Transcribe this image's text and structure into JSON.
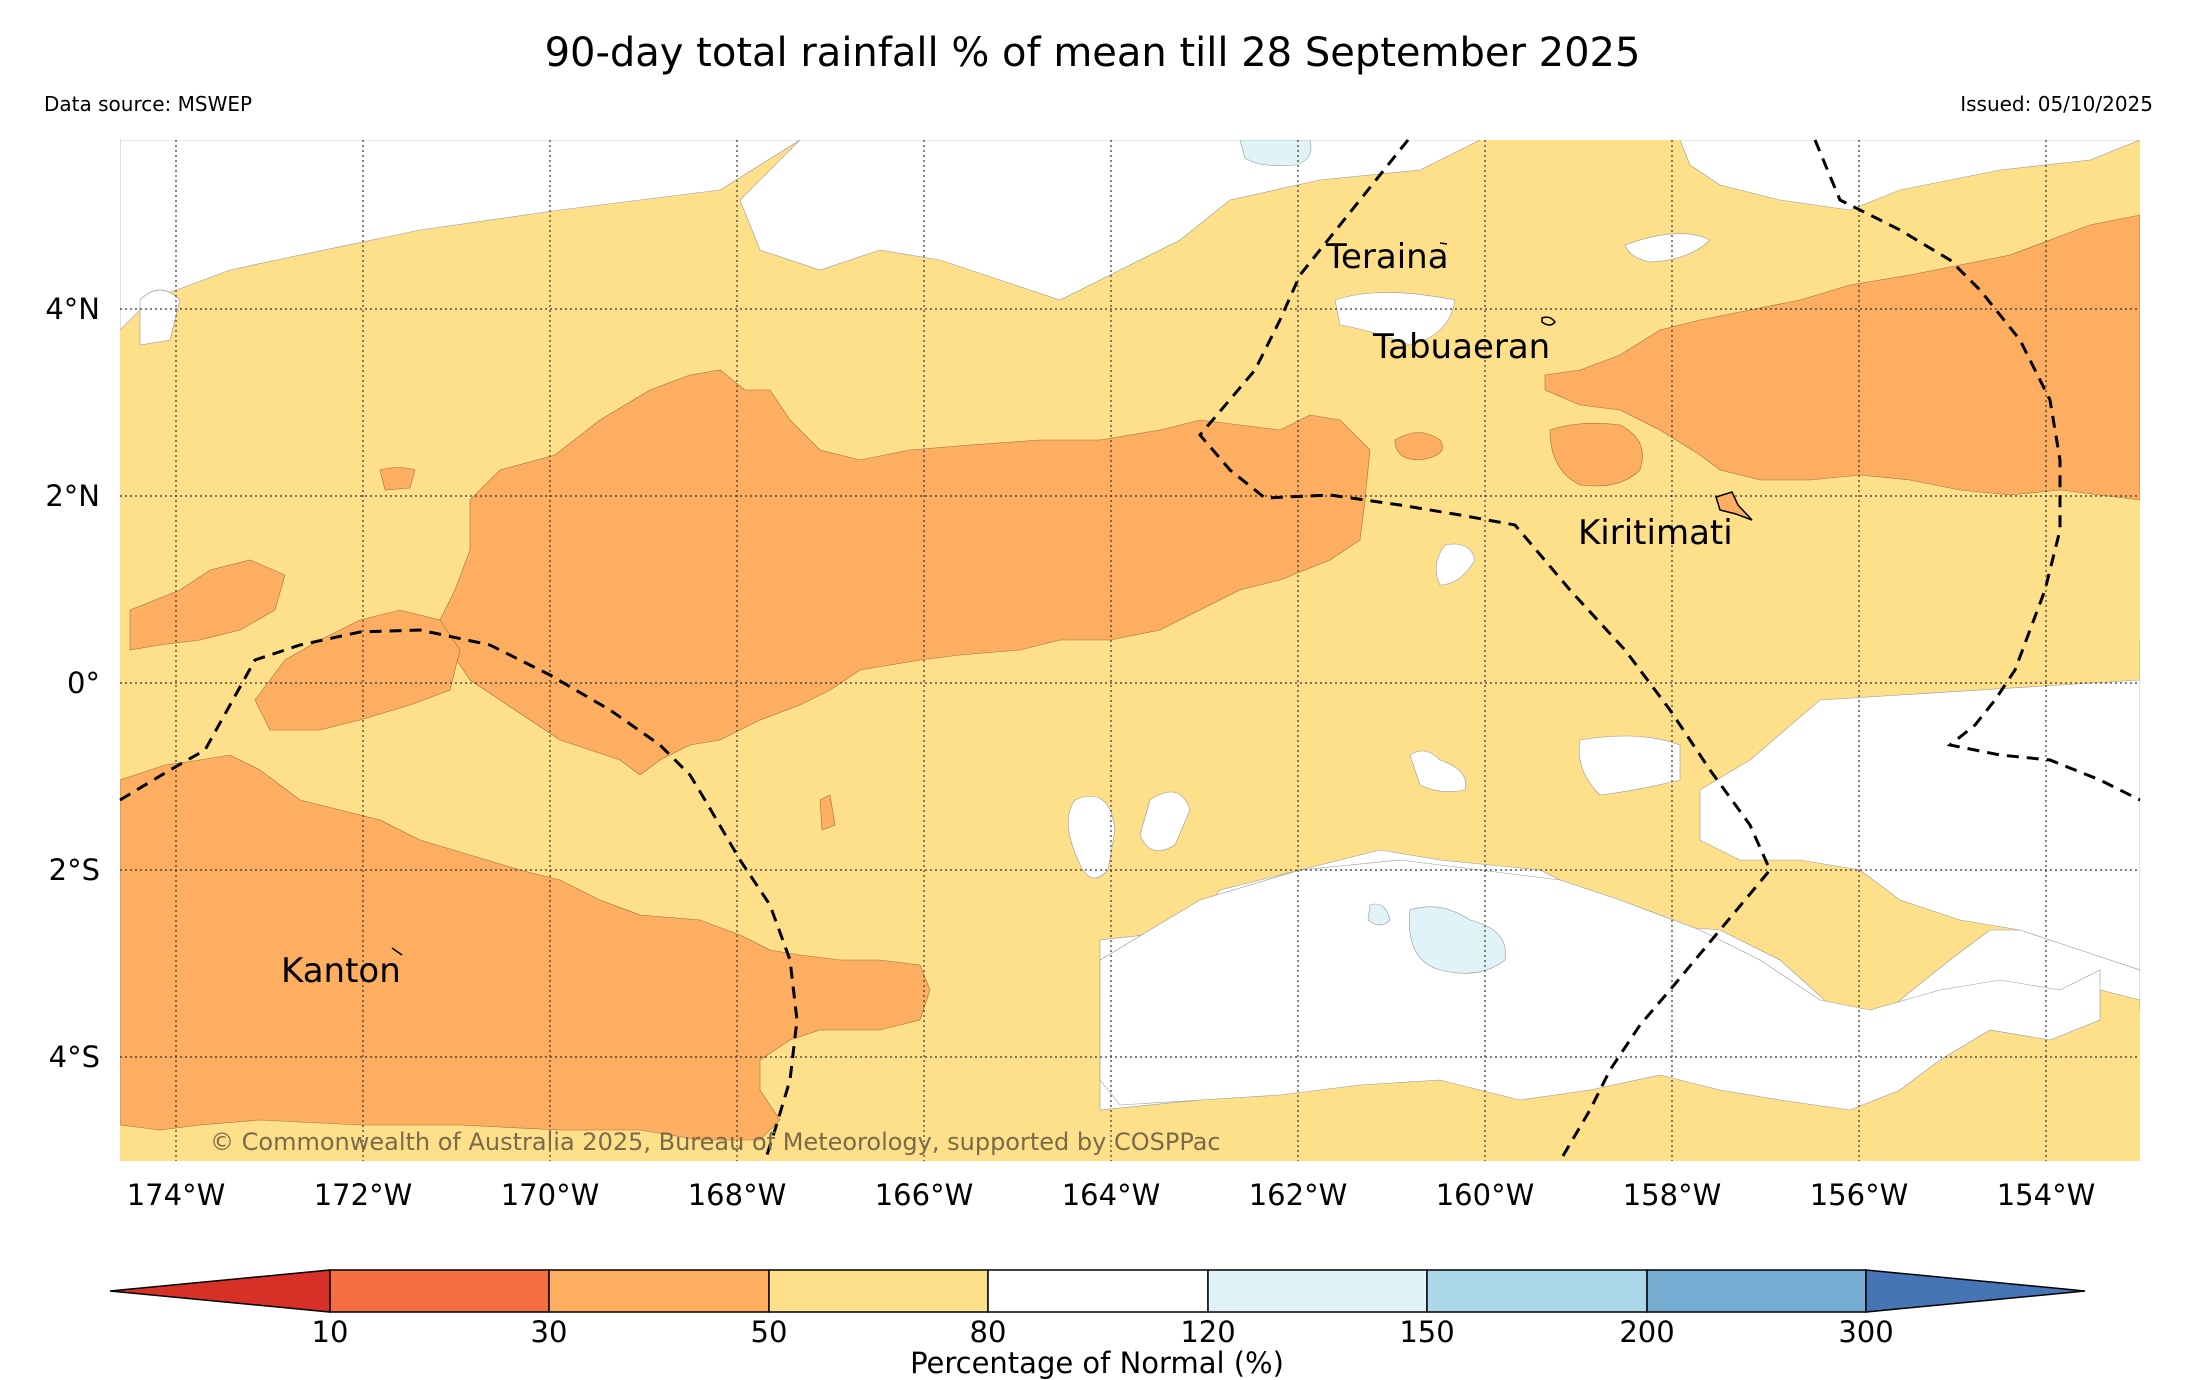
{
  "title": "90-day total rainfall % of mean till 28 September 2025",
  "data_source": "Data source: MSWEP",
  "issued": "Issued: 05/10/2025",
  "credit": "© Commonwealth of Australia 2025, Bureau of Meteorology, supported by COSPPac",
  "colors": {
    "c_lt10": "#d73027",
    "c_10_30": "#f46d43",
    "c_30_50": "#fdae61",
    "c_50_80": "#fee08b",
    "c_80_120": "#ffffff",
    "c_120_150": "#e0f3f8",
    "c_150_200": "#abd9e9",
    "c_200_300": "#74add1",
    "c_gt300": "#4575b4"
  },
  "map": {
    "lat_labels": [
      "4°N",
      "2°N",
      "0°",
      "2°S",
      "4°S"
    ],
    "lon_labels": [
      "174°W",
      "172°W",
      "170°W",
      "168°W",
      "166°W",
      "164°W",
      "162°W",
      "160°W",
      "158°W",
      "156°W",
      "154°W"
    ],
    "places": [
      "Teraina",
      "Tabuaeran",
      "Kiritimati",
      "Kanton"
    ]
  },
  "colorbar": {
    "ticks": [
      "10",
      "30",
      "50",
      "80",
      "120",
      "150",
      "200",
      "300"
    ],
    "label": "Percentage of Normal (%)"
  }
}
